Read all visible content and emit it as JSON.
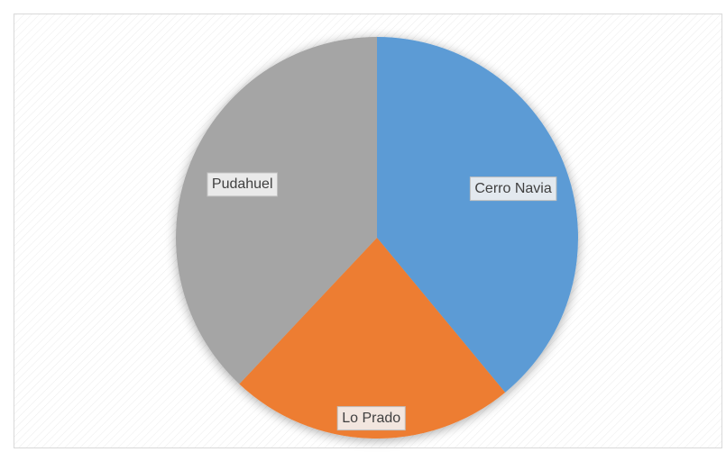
{
  "chart_data": {
    "type": "pie",
    "categories": [
      "Cerro Navia",
      "Lo Prado",
      "Pudahuel"
    ],
    "values": [
      39,
      23,
      38
    ],
    "colors": [
      "#5b9bd5",
      "#ed7d31",
      "#a5a5a5"
    ]
  }
}
